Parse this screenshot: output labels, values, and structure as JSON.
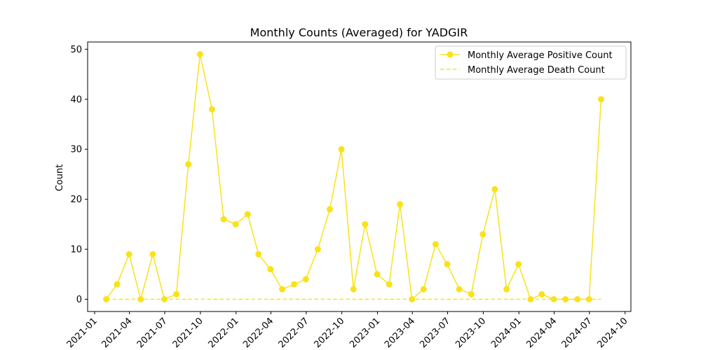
{
  "chart_data": {
    "type": "line",
    "title": "Monthly Counts (Averaged) for YADGIR",
    "xlabel": "",
    "ylabel": "Count",
    "ylim": [
      -2.45,
      51.45
    ],
    "xlim": [
      "2020-12-14",
      "2024-10-16"
    ],
    "yticks": [
      0,
      10,
      20,
      30,
      40,
      50
    ],
    "xticks": [
      "2021-01",
      "2021-04",
      "2021-07",
      "2021-10",
      "2022-01",
      "2022-04",
      "2022-07",
      "2022-10",
      "2023-01",
      "2023-04",
      "2023-07",
      "2023-10",
      "2024-01",
      "2024-04",
      "2024-07",
      "2024-10"
    ],
    "grid": false,
    "legend_position": "top-right",
    "x": [
      "2021-01-31",
      "2021-02-28",
      "2021-03-31",
      "2021-04-30",
      "2021-05-31",
      "2021-06-30",
      "2021-07-31",
      "2021-08-31",
      "2021-09-30",
      "2021-10-31",
      "2021-11-30",
      "2021-12-31",
      "2022-01-31",
      "2022-02-28",
      "2022-03-31",
      "2022-04-30",
      "2022-05-31",
      "2022-06-30",
      "2022-07-31",
      "2022-08-31",
      "2022-09-30",
      "2022-10-31",
      "2022-11-30",
      "2022-12-31",
      "2023-01-31",
      "2023-02-28",
      "2023-03-31",
      "2023-04-30",
      "2023-05-31",
      "2023-06-30",
      "2023-07-31",
      "2023-08-31",
      "2023-09-30",
      "2023-10-31",
      "2023-11-30",
      "2023-12-31",
      "2024-01-31",
      "2024-02-29",
      "2024-03-31",
      "2024-04-30",
      "2024-05-31",
      "2024-06-30",
      "2024-07-31"
    ],
    "series": [
      {
        "name": "Monthly Average Positive Count",
        "color": "#f9e21b",
        "style": "solid",
        "marker": "circle",
        "values": [
          0,
          3,
          9,
          0,
          9,
          0,
          1,
          27,
          49,
          38,
          16,
          15,
          17,
          9,
          6,
          2,
          3,
          4,
          10,
          18,
          30,
          2,
          15,
          5,
          3,
          19,
          0,
          2,
          11,
          7,
          2,
          1,
          13,
          22,
          2,
          7,
          0,
          1,
          0,
          0,
          0,
          0,
          40
        ]
      },
      {
        "name": "Monthly Average Death Count",
        "color": "#f9e21b",
        "style": "dashed",
        "marker": "none",
        "values": [
          0,
          0,
          0,
          0,
          0,
          0,
          0,
          0,
          0,
          0,
          0,
          0,
          0,
          0,
          0,
          0,
          0,
          0,
          0,
          0,
          0,
          0,
          0,
          0,
          0,
          0,
          0,
          0,
          0,
          0,
          0,
          0,
          0,
          0,
          0,
          0,
          0,
          0,
          0,
          0,
          0,
          0,
          0
        ]
      }
    ]
  }
}
